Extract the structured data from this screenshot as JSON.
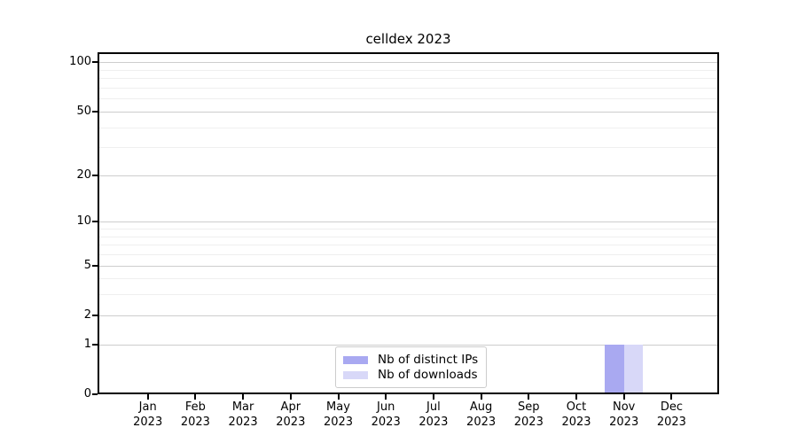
{
  "title": "celldex 2023",
  "chart_data": {
    "type": "bar",
    "title": "celldex 2023",
    "months": [
      "Jan",
      "Feb",
      "Mar",
      "Apr",
      "May",
      "Jun",
      "Jul",
      "Aug",
      "Sep",
      "Oct",
      "Nov",
      "Dec"
    ],
    "year": "2023",
    "series": [
      {
        "name": "Nb of distinct IPs",
        "color": "#a9a9f1",
        "values": [
          0,
          0,
          0,
          0,
          0,
          0,
          0,
          0,
          0,
          0,
          1,
          0
        ]
      },
      {
        "name": "Nb of downloads",
        "color": "#d8d8f8",
        "values": [
          0,
          0,
          0,
          0,
          0,
          0,
          0,
          0,
          0,
          0,
          1,
          0
        ]
      }
    ],
    "y_scale": "log1p",
    "ylim": [
      0,
      115
    ],
    "y_major_ticks": [
      0,
      1,
      2,
      5,
      10,
      20,
      50,
      100
    ],
    "y_minor_gridlines": [
      3,
      4,
      6,
      7,
      8,
      9,
      30,
      40,
      60,
      70,
      80,
      90
    ],
    "grid": "horizontal",
    "legend_position": "lower center inside"
  }
}
